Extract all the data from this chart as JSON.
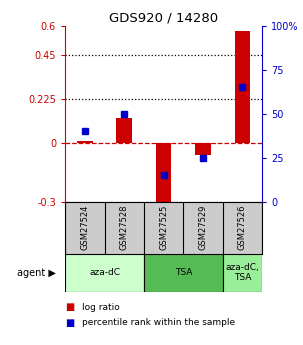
{
  "title": "GDS920 / 14280",
  "samples": [
    "GSM27524",
    "GSM27528",
    "GSM27525",
    "GSM27529",
    "GSM27526"
  ],
  "log_ratio": [
    0.01,
    0.13,
    -0.315,
    -0.06,
    0.575
  ],
  "percentile_rank_pct": [
    40,
    50,
    15,
    25,
    65
  ],
  "ylim_left": [
    -0.3,
    0.6
  ],
  "ylim_right": [
    0,
    100
  ],
  "yticks_left": [
    -0.3,
    0.0,
    0.225,
    0.45,
    0.6
  ],
  "yticks_right": [
    0,
    25,
    50,
    75,
    100
  ],
  "ytick_labels_left": [
    "-0.3",
    "0",
    "0.225",
    "0.45",
    "0.6"
  ],
  "ytick_labels_right": [
    "0",
    "25",
    "50",
    "75",
    "100%"
  ],
  "hlines": [
    0.225,
    0.45
  ],
  "dashed_zero": 0.0,
  "agent_groups": [
    {
      "label": "aza-dC",
      "color": "#ccffcc",
      "span": [
        0,
        2
      ]
    },
    {
      "label": "TSA",
      "color": "#55bb55",
      "span": [
        2,
        4
      ]
    },
    {
      "label": "aza-dC,\nTSA",
      "color": "#99ee99",
      "span": [
        4,
        5
      ]
    }
  ],
  "agent_label": "agent",
  "bar_color_red": "#cc0000",
  "bar_color_blue": "#0000cc",
  "tick_color_left": "#cc0000",
  "tick_color_right": "#0000cc",
  "legend_red": "log ratio",
  "legend_blue": "percentile rank within the sample",
  "bg": "#ffffff",
  "sample_box_color": "#cccccc"
}
